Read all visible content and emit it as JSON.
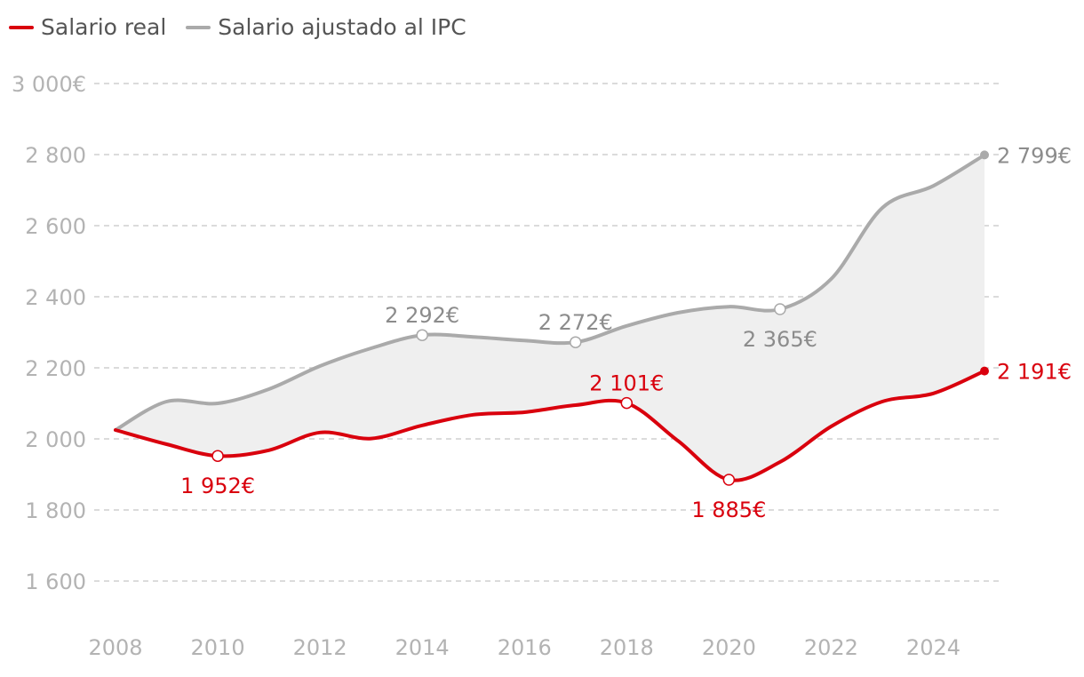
{
  "chart_data": {
    "type": "area",
    "legend_position": "top-left",
    "legend": [
      {
        "label": "Salario real",
        "color": "#d9000d"
      },
      {
        "label": "Salario ajustado al IPC",
        "color": "#aaaaaa"
      }
    ],
    "x": [
      2008,
      2009,
      2010,
      2011,
      2012,
      2013,
      2014,
      2015,
      2016,
      2017,
      2018,
      2019,
      2020,
      2021,
      2022,
      2023,
      2024,
      2025
    ],
    "series": [
      {
        "name": "Salario real",
        "color": "#d9000d",
        "values": [
          2025,
          1985,
          1952,
          1968,
          2018,
          2001,
          2038,
          2068,
          2075,
          2095,
          2101,
          1995,
          1885,
          1935,
          2035,
          2105,
          2128,
          2191
        ]
      },
      {
        "name": "Salario ajustado al IPC",
        "color": "#aaaaaa",
        "values": [
          2025,
          2105,
          2100,
          2140,
          2205,
          2255,
          2292,
          2287,
          2277,
          2272,
          2318,
          2355,
          2372,
          2365,
          2450,
          2650,
          2712,
          2799
        ]
      }
    ],
    "ylim": [
      1500,
      3000
    ],
    "yticks": [
      {
        "value": 3000,
        "label": "3 000€"
      },
      {
        "value": 2800,
        "label": "2 800"
      },
      {
        "value": 2600,
        "label": "2 600"
      },
      {
        "value": 2400,
        "label": "2 400"
      },
      {
        "value": 2200,
        "label": "2 200"
      },
      {
        "value": 2000,
        "label": "2 000"
      },
      {
        "value": 1800,
        "label": "1 800"
      },
      {
        "value": 1600,
        "label": "1 600"
      }
    ],
    "xticks": [
      {
        "value": 2008,
        "label": "2008"
      },
      {
        "value": 2010,
        "label": "2010"
      },
      {
        "value": 2012,
        "label": "2012"
      },
      {
        "value": 2014,
        "label": "2014"
      },
      {
        "value": 2016,
        "label": "2016"
      },
      {
        "value": 2018,
        "label": "2018"
      },
      {
        "value": 2020,
        "label": "2020"
      },
      {
        "value": 2022,
        "label": "2022"
      },
      {
        "value": 2024,
        "label": "2024"
      }
    ],
    "grid": "horizontal-dashed",
    "fill_between": {
      "color": "#efefef"
    },
    "annotations": [
      {
        "series": 0,
        "x": 2010,
        "y": 1952,
        "label": "1 952€",
        "pos": "below",
        "marker": "open"
      },
      {
        "series": 0,
        "x": 2018,
        "y": 2101,
        "label": "2 101€",
        "pos": "above",
        "marker": "open"
      },
      {
        "series": 0,
        "x": 2020,
        "y": 1885,
        "label": "1 885€",
        "pos": "below",
        "marker": "open"
      },
      {
        "series": 0,
        "x": 2025,
        "y": 2191,
        "label": "2 191€",
        "pos": "right",
        "marker": "filled"
      },
      {
        "series": 1,
        "x": 2014,
        "y": 2292,
        "label": "2 292€",
        "pos": "above",
        "marker": "open"
      },
      {
        "series": 1,
        "x": 2017,
        "y": 2272,
        "label": "2 272€",
        "pos": "above",
        "marker": "open"
      },
      {
        "series": 1,
        "x": 2021,
        "y": 2365,
        "label": "2 365€",
        "pos": "below",
        "marker": "open"
      },
      {
        "series": 1,
        "x": 2025,
        "y": 2799,
        "label": "2 799€",
        "pos": "right",
        "marker": "filled"
      }
    ]
  }
}
